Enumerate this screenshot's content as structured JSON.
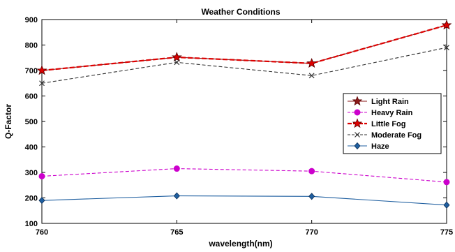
{
  "chart_data": {
    "type": "line",
    "title": "Weather Conditions",
    "xlabel": "wavelength(nm)",
    "ylabel": "Q-Factor",
    "x": [
      760,
      765,
      770,
      775
    ],
    "xlim": [
      760,
      775
    ],
    "ylim": [
      100,
      900
    ],
    "xticks": [
      760,
      765,
      770,
      775
    ],
    "yticks": [
      100,
      200,
      300,
      400,
      500,
      600,
      700,
      800,
      900
    ],
    "grid": false,
    "legend_position": "right",
    "series": [
      {
        "name": "Light Rain",
        "values": [
          700,
          752,
          728,
          878
        ],
        "color": "#8B1A1A",
        "marker": "star",
        "dash": "solid"
      },
      {
        "name": "Heavy Rain",
        "values": [
          285,
          315,
          305,
          262
        ],
        "color": "#CC00CC",
        "marker": "circle",
        "dash": "dashed"
      },
      {
        "name": "Little Fog",
        "values": [
          700,
          752,
          728,
          878
        ],
        "color": "#DD0000",
        "marker": "star",
        "dash": "dashed"
      },
      {
        "name": "Moderate Fog",
        "values": [
          650,
          732,
          680,
          790
        ],
        "color": "#333333",
        "marker": "x",
        "dash": "dashed"
      },
      {
        "name": "Haze",
        "values": [
          190,
          208,
          206,
          172
        ],
        "color": "#1F5FA0",
        "marker": "diamond",
        "dash": "solid"
      }
    ]
  }
}
